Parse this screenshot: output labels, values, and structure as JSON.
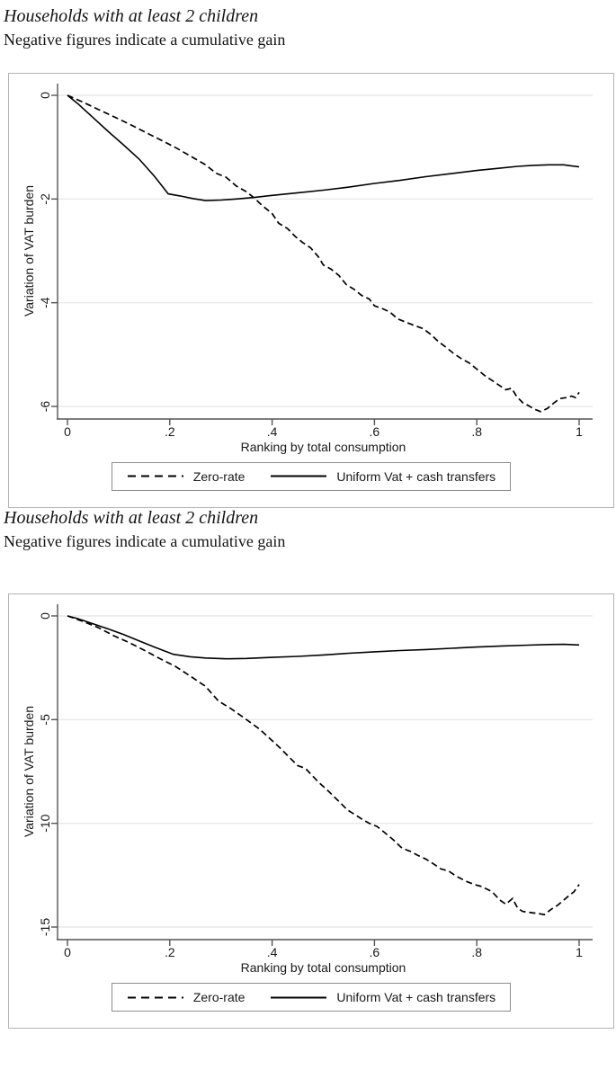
{
  "chart_data": [
    {
      "type": "line",
      "title": "Households with at least 2 children",
      "subtitle": "Negative figures indicate a cumulative gain",
      "xlabel": "Ranking by total consumption",
      "ylabel": "Variation of VAT burden",
      "xlim": [
        0,
        1
      ],
      "ylim": [
        -6.4,
        0.2
      ],
      "grid": true,
      "legend_position": "bottom-center",
      "xticks": [
        0,
        0.2,
        0.4,
        0.6,
        0.8,
        1
      ],
      "xtick_labels": [
        "0",
        ".2",
        ".4",
        ".6",
        ".8",
        "1"
      ],
      "yticks": [
        0,
        -2,
        -4,
        -6
      ],
      "ytick_labels": [
        "0",
        "-2",
        "-4",
        "-6"
      ],
      "legend": [
        {
          "label": "Zero-rate",
          "style": "dashed"
        },
        {
          "label": "Uniform Vat + cash transfers",
          "style": "solid"
        }
      ],
      "series": [
        {
          "name": "Zero-rate",
          "style": "dashed",
          "points": [
            [
              0,
              0
            ],
            [
              0.03,
              -0.13
            ],
            [
              0.06,
              -0.27
            ],
            [
              0.09,
              -0.41
            ],
            [
              0.12,
              -0.55
            ],
            [
              0.15,
              -0.7
            ],
            [
              0.18,
              -0.85
            ],
            [
              0.21,
              -1.0
            ],
            [
              0.24,
              -1.17
            ],
            [
              0.27,
              -1.34
            ],
            [
              0.29,
              -1.5
            ],
            [
              0.31,
              -1.58
            ],
            [
              0.33,
              -1.75
            ],
            [
              0.35,
              -1.86
            ],
            [
              0.365,
              -1.98
            ],
            [
              0.38,
              -2.12
            ],
            [
              0.4,
              -2.28
            ],
            [
              0.413,
              -2.47
            ],
            [
              0.43,
              -2.57
            ],
            [
              0.445,
              -2.72
            ],
            [
              0.46,
              -2.84
            ],
            [
              0.475,
              -2.94
            ],
            [
              0.49,
              -3.11
            ],
            [
              0.5,
              -3.27
            ],
            [
              0.515,
              -3.35
            ],
            [
              0.53,
              -3.47
            ],
            [
              0.545,
              -3.65
            ],
            [
              0.56,
              -3.74
            ],
            [
              0.575,
              -3.86
            ],
            [
              0.59,
              -3.93
            ],
            [
              0.6,
              -4.06
            ],
            [
              0.617,
              -4.12
            ],
            [
              0.63,
              -4.18
            ],
            [
              0.645,
              -4.31
            ],
            [
              0.66,
              -4.37
            ],
            [
              0.678,
              -4.44
            ],
            [
              0.695,
              -4.5
            ],
            [
              0.71,
              -4.61
            ],
            [
              0.725,
              -4.75
            ],
            [
              0.74,
              -4.86
            ],
            [
              0.755,
              -4.98
            ],
            [
              0.77,
              -5.08
            ],
            [
              0.785,
              -5.16
            ],
            [
              0.8,
              -5.28
            ],
            [
              0.815,
              -5.4
            ],
            [
              0.83,
              -5.5
            ],
            [
              0.845,
              -5.6
            ],
            [
              0.857,
              -5.68
            ],
            [
              0.868,
              -5.65
            ],
            [
              0.878,
              -5.81
            ],
            [
              0.89,
              -5.93
            ],
            [
              0.9,
              -5.98
            ],
            [
              0.912,
              -6.05
            ],
            [
              0.925,
              -6.1
            ],
            [
              0.938,
              -6.04
            ],
            [
              0.95,
              -5.94
            ],
            [
              0.962,
              -5.85
            ],
            [
              0.975,
              -5.83
            ],
            [
              0.985,
              -5.8
            ],
            [
              0.993,
              -5.83
            ],
            [
              1,
              -5.73
            ]
          ]
        },
        {
          "name": "Uniform Vat + cash transfers",
          "style": "solid",
          "points": [
            [
              0,
              0
            ],
            [
              0.02,
              -0.16
            ],
            [
              0.05,
              -0.43
            ],
            [
              0.08,
              -0.7
            ],
            [
              0.11,
              -0.96
            ],
            [
              0.14,
              -1.23
            ],
            [
              0.17,
              -1.56
            ],
            [
              0.197,
              -1.9
            ],
            [
              0.22,
              -1.94
            ],
            [
              0.245,
              -1.99
            ],
            [
              0.27,
              -2.03
            ],
            [
              0.3,
              -2.02
            ],
            [
              0.33,
              -2.0
            ],
            [
              0.365,
              -1.97
            ],
            [
              0.4,
              -1.93
            ],
            [
              0.45,
              -1.88
            ],
            [
              0.5,
              -1.83
            ],
            [
              0.55,
              -1.77
            ],
            [
              0.6,
              -1.7
            ],
            [
              0.65,
              -1.64
            ],
            [
              0.7,
              -1.57
            ],
            [
              0.75,
              -1.51
            ],
            [
              0.8,
              -1.45
            ],
            [
              0.84,
              -1.41
            ],
            [
              0.88,
              -1.37
            ],
            [
              0.91,
              -1.35
            ],
            [
              0.94,
              -1.34
            ],
            [
              0.97,
              -1.34
            ],
            [
              1,
              -1.38
            ]
          ]
        }
      ]
    },
    {
      "type": "line",
      "title": "Households with at least 2 children",
      "subtitle": "Negative figures indicate a cumulative gain",
      "xlabel": "Ranking by total consumption",
      "ylabel": "Variation of VAT burden",
      "xlim": [
        0,
        1
      ],
      "ylim": [
        -15.6,
        0.5
      ],
      "grid": true,
      "legend_position": "bottom-center",
      "xticks": [
        0,
        0.2,
        0.4,
        0.6,
        0.8,
        1
      ],
      "xtick_labels": [
        "0",
        ".2",
        ".4",
        ".6",
        ".8",
        "1"
      ],
      "yticks": [
        0,
        -5,
        -10,
        -15
      ],
      "ytick_labels": [
        "0",
        "-5",
        "-10",
        "-15"
      ],
      "legend": [
        {
          "label": "Zero-rate",
          "style": "dashed"
        },
        {
          "label": "Uniform Vat + cash transfers",
          "style": "solid"
        }
      ],
      "series": [
        {
          "name": "Zero-rate",
          "style": "dashed",
          "points": [
            [
              0,
              0
            ],
            [
              0.03,
              -0.26
            ],
            [
              0.06,
              -0.56
            ],
            [
              0.09,
              -0.95
            ],
            [
              0.12,
              -1.28
            ],
            [
              0.15,
              -1.65
            ],
            [
              0.18,
              -2.05
            ],
            [
              0.21,
              -2.42
            ],
            [
              0.24,
              -2.9
            ],
            [
              0.27,
              -3.4
            ],
            [
              0.295,
              -4.1
            ],
            [
              0.32,
              -4.48
            ],
            [
              0.35,
              -5.0
            ],
            [
              0.375,
              -5.45
            ],
            [
              0.395,
              -5.9
            ],
            [
              0.415,
              -6.35
            ],
            [
              0.433,
              -6.8
            ],
            [
              0.45,
              -7.22
            ],
            [
              0.465,
              -7.35
            ],
            [
              0.49,
              -8.0
            ],
            [
              0.51,
              -8.45
            ],
            [
              0.523,
              -8.76
            ],
            [
              0.535,
              -9.05
            ],
            [
              0.547,
              -9.35
            ],
            [
              0.56,
              -9.55
            ],
            [
              0.576,
              -9.8
            ],
            [
              0.59,
              -10.0
            ],
            [
              0.605,
              -10.15
            ],
            [
              0.62,
              -10.45
            ],
            [
              0.637,
              -10.8
            ],
            [
              0.654,
              -11.2
            ],
            [
              0.67,
              -11.35
            ],
            [
              0.685,
              -11.55
            ],
            [
              0.7,
              -11.72
            ],
            [
              0.715,
              -11.95
            ],
            [
              0.73,
              -12.2
            ],
            [
              0.745,
              -12.3
            ],
            [
              0.76,
              -12.55
            ],
            [
              0.78,
              -12.8
            ],
            [
              0.795,
              -12.95
            ],
            [
              0.81,
              -13.05
            ],
            [
              0.83,
              -13.3
            ],
            [
              0.845,
              -13.7
            ],
            [
              0.857,
              -13.9
            ],
            [
              0.87,
              -13.62
            ],
            [
              0.88,
              -14.1
            ],
            [
              0.89,
              -14.25
            ],
            [
              0.905,
              -14.3
            ],
            [
              0.92,
              -14.35
            ],
            [
              0.932,
              -14.4
            ],
            [
              0.945,
              -14.15
            ],
            [
              0.958,
              -13.95
            ],
            [
              0.97,
              -13.7
            ],
            [
              0.982,
              -13.45
            ],
            [
              0.99,
              -13.3
            ],
            [
              1,
              -12.95
            ]
          ]
        },
        {
          "name": "Uniform Vat + cash transfers",
          "style": "solid",
          "points": [
            [
              0,
              0
            ],
            [
              0.02,
              -0.13
            ],
            [
              0.05,
              -0.38
            ],
            [
              0.08,
              -0.63
            ],
            [
              0.11,
              -0.9
            ],
            [
              0.14,
              -1.2
            ],
            [
              0.17,
              -1.5
            ],
            [
              0.207,
              -1.85
            ],
            [
              0.24,
              -1.97
            ],
            [
              0.27,
              -2.03
            ],
            [
              0.31,
              -2.07
            ],
            [
              0.35,
              -2.05
            ],
            [
              0.4,
              -2.0
            ],
            [
              0.45,
              -1.95
            ],
            [
              0.5,
              -1.88
            ],
            [
              0.55,
              -1.8
            ],
            [
              0.6,
              -1.73
            ],
            [
              0.65,
              -1.67
            ],
            [
              0.7,
              -1.62
            ],
            [
              0.75,
              -1.56
            ],
            [
              0.8,
              -1.5
            ],
            [
              0.85,
              -1.45
            ],
            [
              0.9,
              -1.41
            ],
            [
              0.94,
              -1.38
            ],
            [
              0.97,
              -1.37
            ],
            [
              1,
              -1.4
            ]
          ]
        }
      ]
    }
  ],
  "style_colors": {
    "line": "#000000",
    "gridline": "#e4e4e4",
    "axis": "#545454",
    "box_border": "#b4b4b4",
    "legend_border": "#8f8f8f"
  }
}
